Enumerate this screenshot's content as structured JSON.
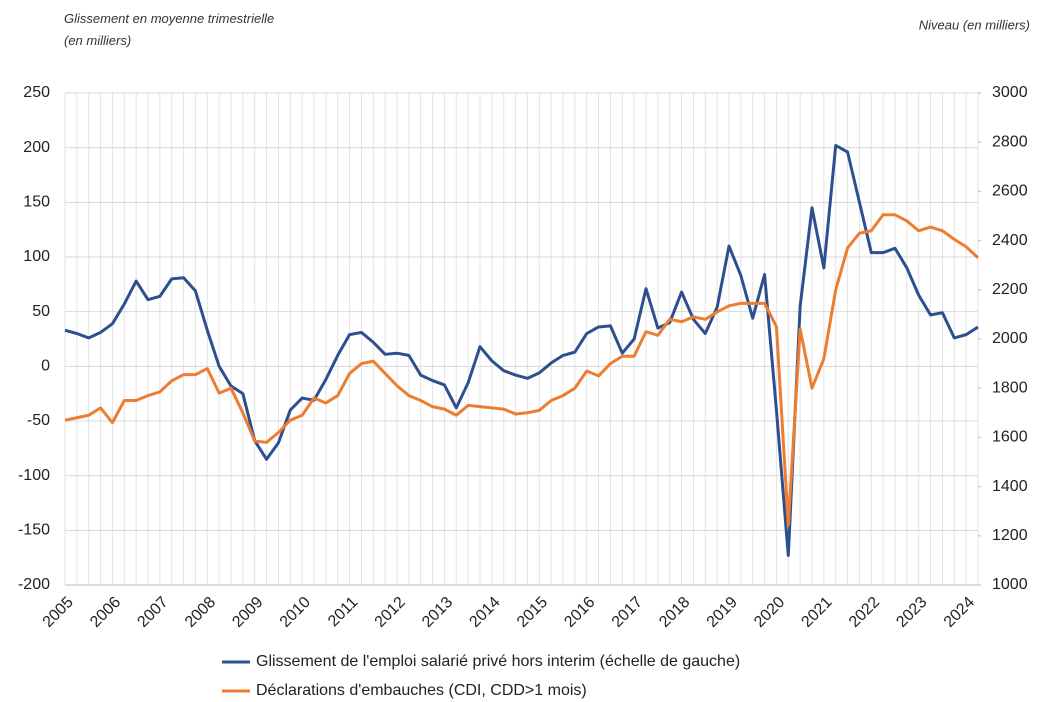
{
  "chart_data": {
    "type": "line",
    "y_label": "Glissement en moyenne trimestrielle (en milliers)",
    "y2_label": "Niveau (en milliers)",
    "categories": [
      "2005",
      null,
      null,
      null,
      "2006",
      null,
      null,
      null,
      "2007",
      null,
      null,
      null,
      "2008",
      null,
      null,
      null,
      "2009",
      null,
      null,
      null,
      "2010",
      null,
      null,
      null,
      "2011",
      null,
      null,
      null,
      "2012",
      null,
      null,
      null,
      "2013",
      null,
      null,
      null,
      "2014",
      null,
      null,
      null,
      "2015",
      null,
      null,
      null,
      "2016",
      null,
      null,
      null,
      "2017",
      null,
      null,
      null,
      "2018",
      null,
      null,
      null,
      "2019",
      null,
      null,
      null,
      "2020",
      null,
      null,
      null,
      "2021",
      null,
      null,
      null,
      "2022",
      null,
      null,
      null,
      "2023",
      null,
      null,
      null,
      "2024",
      null
    ],
    "series": [
      {
        "name": "Glissement de l'emploi salarié privé hors interim (échelle de gauche)",
        "color": "#2e4f8f",
        "axis": "y",
        "values": [
          33,
          30,
          26,
          31,
          39,
          57,
          78,
          61,
          64,
          80,
          81,
          69,
          33,
          0,
          -18,
          -25,
          -68,
          -85,
          -70,
          -40,
          -29,
          -31,
          -12,
          10,
          29,
          31,
          22,
          11,
          12,
          10,
          -8,
          -13,
          -17,
          -38,
          -15,
          18,
          5,
          -4,
          -8,
          -11,
          -6,
          3,
          10,
          13,
          30,
          36,
          37,
          12,
          25,
          71,
          35,
          40,
          68,
          43,
          30,
          54,
          110,
          83,
          44,
          84,
          -40,
          -173,
          55,
          145,
          90,
          202,
          196,
          150,
          104,
          104,
          108,
          90,
          65,
          47,
          49,
          26,
          29,
          36
        ]
      },
      {
        "name": "Déclarations d'embauches (CDI, CDD>1 mois)",
        "color": "#ed7d31",
        "axis": "y2",
        "values": [
          1670,
          1680,
          1690,
          1720,
          1660,
          1750,
          1750,
          1770,
          1785,
          1830,
          1855,
          1855,
          1880,
          1780,
          1800,
          1700,
          1585,
          1580,
          1620,
          1670,
          1690,
          1760,
          1740,
          1770,
          1860,
          1900,
          1910,
          1860,
          1810,
          1770,
          1750,
          1725,
          1715,
          1690,
          1730,
          1725,
          1720,
          1715,
          1695,
          1700,
          1710,
          1750,
          1770,
          1800,
          1870,
          1850,
          1900,
          1930,
          1930,
          2030,
          2015,
          2080,
          2070,
          2090,
          2080,
          2110,
          2135,
          2145,
          2145,
          2145,
          2050,
          1245,
          2040,
          1800,
          1920,
          2200,
          2370,
          2430,
          2440,
          2505,
          2505,
          2480,
          2440,
          2455,
          2440,
          2405,
          2375,
          2330
        ]
      }
    ],
    "ylim": [
      -200,
      250
    ],
    "yticks": [
      -200,
      -150,
      -100,
      -50,
      0,
      50,
      100,
      150,
      200,
      250
    ],
    "y2lim": [
      1000,
      3000
    ],
    "y2ticks": [
      1000,
      1200,
      1400,
      1600,
      1800,
      2000,
      2200,
      2400,
      2600,
      2800,
      3000
    ],
    "grid": true
  }
}
